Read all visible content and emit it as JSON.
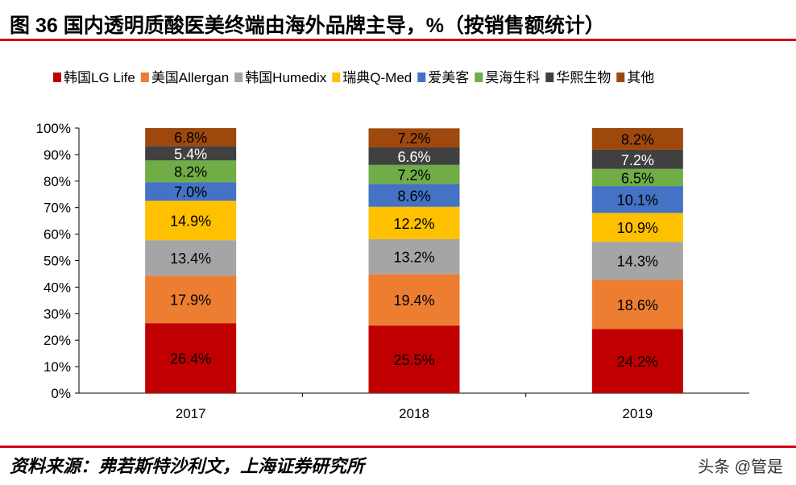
{
  "title": "图 36 国内透明质酸医美终端由海外品牌主导，%（按销售额统计）",
  "source": "资料来源：弗若斯特沙利文，上海证券研究所",
  "watermark": "头条 @管是",
  "chart_data": {
    "type": "bar",
    "stacked": true,
    "categories": [
      "2017",
      "2018",
      "2019"
    ],
    "ylim": [
      0,
      100
    ],
    "yticks": [
      "0%",
      "10%",
      "20%",
      "30%",
      "40%",
      "50%",
      "60%",
      "70%",
      "80%",
      "90%",
      "100%"
    ],
    "grid": false,
    "legend_position": "top",
    "series": [
      {
        "name": "韩国LG Life",
        "color": "#C00000",
        "values": [
          26.4,
          25.5,
          24.2
        ],
        "labels": [
          "26.4%",
          "25.5%",
          "24.2%"
        ]
      },
      {
        "name": "美国Allergan",
        "color": "#ED7D31",
        "values": [
          17.9,
          19.4,
          18.6
        ],
        "labels": [
          "17.9%",
          "19.4%",
          "18.6%"
        ]
      },
      {
        "name": "韩国Humedix",
        "color": "#A5A5A5",
        "values": [
          13.4,
          13.2,
          14.3
        ],
        "labels": [
          "13.4%",
          "13.2%",
          "14.3%"
        ]
      },
      {
        "name": "瑞典Q-Med",
        "color": "#FFC000",
        "values": [
          14.9,
          12.2,
          10.9
        ],
        "labels": [
          "14.9%",
          "12.2%",
          "10.9%"
        ]
      },
      {
        "name": "爱美客",
        "color": "#4472C4",
        "values": [
          7.0,
          8.6,
          10.1
        ],
        "labels": [
          "7.0%",
          "8.6%",
          "10.1%"
        ]
      },
      {
        "name": "昊海生科",
        "color": "#70AD47",
        "values": [
          8.2,
          7.2,
          6.5
        ],
        "labels": [
          "8.2%",
          "7.2%",
          "6.5%"
        ]
      },
      {
        "name": "华熙生物",
        "color": "#404040",
        "values": [
          5.4,
          6.6,
          7.2
        ],
        "labels": [
          "5.4%",
          "6.6%",
          "7.2%"
        ]
      },
      {
        "name": "其他",
        "color": "#9E480E",
        "values": [
          6.8,
          7.2,
          8.2
        ],
        "labels": [
          "6.8%",
          "7.2%",
          "8.2%"
        ]
      }
    ]
  }
}
